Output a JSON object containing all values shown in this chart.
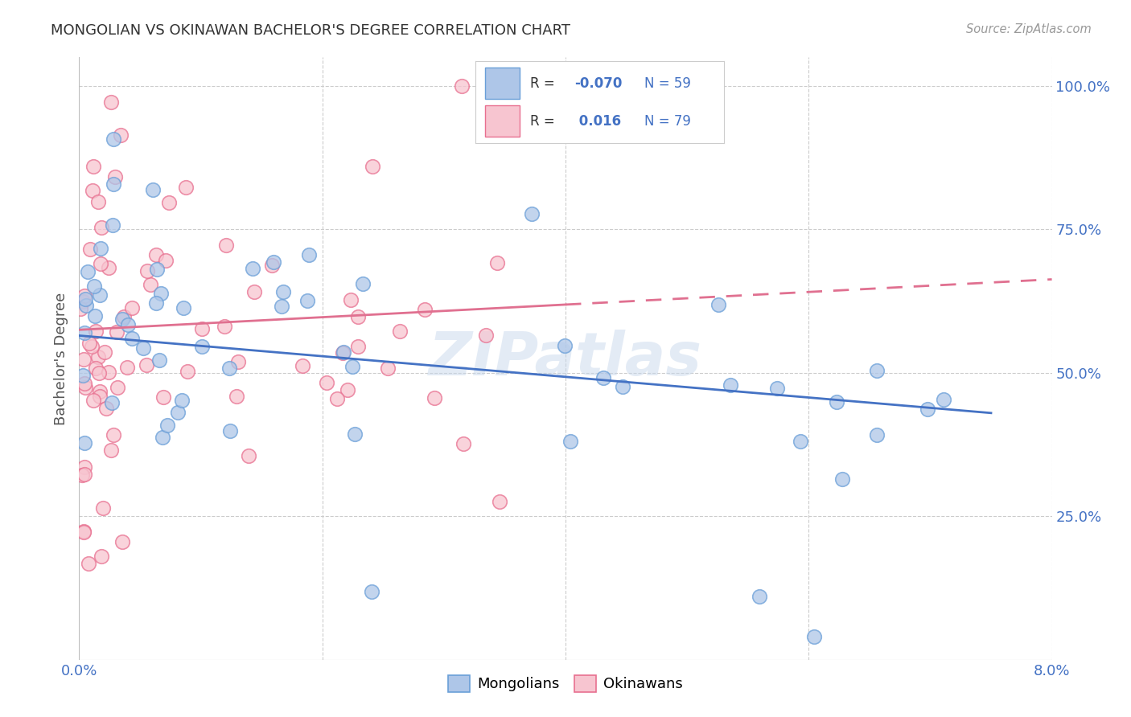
{
  "title": "MONGOLIAN VS OKINAWAN BACHELOR'S DEGREE CORRELATION CHART",
  "source": "Source: ZipAtlas.com",
  "ylabel": "Bachelor's Degree",
  "blue_color": "#aec6e8",
  "blue_edge": "#6a9fd8",
  "pink_color": "#f7c5d0",
  "pink_edge": "#e87090",
  "trend_blue": "#4472c4",
  "trend_pink": "#e07090",
  "watermark": "ZIPatlas",
  "xlim": [
    0.0,
    0.08
  ],
  "ylim": [
    0.0,
    1.05
  ],
  "background_color": "#ffffff",
  "grid_color": "#cccccc",
  "axis_label_color": "#4472c4",
  "title_color": "#333333",
  "R_blue": -0.07,
  "R_pink": 0.016,
  "N_blue": 59,
  "N_pink": 79,
  "intercept_blue": 0.565,
  "slope_blue": -1.8,
  "intercept_pink": 0.575,
  "slope_pink": 1.1
}
